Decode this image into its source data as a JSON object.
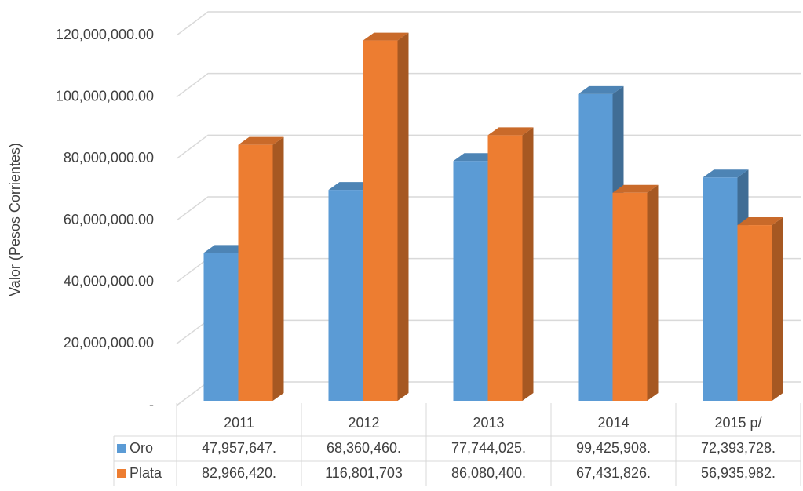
{
  "chart_data": {
    "type": "bar",
    "ylabel": "Valor (Pesos Corrientes)",
    "categories": [
      "2011",
      "2012",
      "2013",
      "2014",
      "2015 p/"
    ],
    "series": [
      {
        "name": "Oro",
        "color": "#5b9bd5",
        "values": [
          47957647,
          68360460,
          77744025,
          99425908,
          72393728
        ],
        "value_labels": [
          "47,957,647.",
          "68,360,460.",
          "77,744,025.",
          "99,425,908.",
          "72,393,728."
        ]
      },
      {
        "name": "Plata",
        "color": "#ed7d31",
        "values": [
          82966420,
          116801703,
          86080400,
          67431826,
          56935982
        ],
        "value_labels": [
          "82,966,420.",
          "116,801,703",
          "86,080,400.",
          "67,431,826.",
          "56,935,982."
        ]
      }
    ],
    "ylim": [
      0,
      120000000
    ],
    "yticks": [
      {
        "value": 0,
        "label": "-"
      },
      {
        "value": 20000000,
        "label": "20,000,000.00"
      },
      {
        "value": 40000000,
        "label": "40,000,000.00"
      },
      {
        "value": 60000000,
        "label": "60,000,000.00"
      },
      {
        "value": 80000000,
        "label": "80,000,000.00"
      },
      {
        "value": 100000000,
        "label": "100,000,000.00"
      },
      {
        "value": 120000000,
        "label": "120,000,000.00"
      }
    ],
    "grid": true
  }
}
